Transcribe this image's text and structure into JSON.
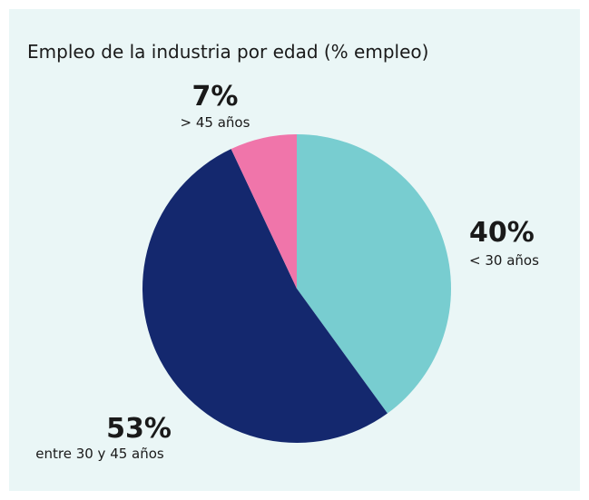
{
  "chart_data": {
    "type": "pie",
    "title": "Empleo de la industria por edad (% empleo)",
    "categories": [
      "< 30 años",
      "entre 30 y 45 años",
      "> 45 años"
    ],
    "values": [
      40,
      53,
      7
    ],
    "value_labels": [
      "40%",
      "53%",
      "7%"
    ],
    "colors": [
      "#78cdd0",
      "#14286e",
      "#f075aa"
    ]
  }
}
